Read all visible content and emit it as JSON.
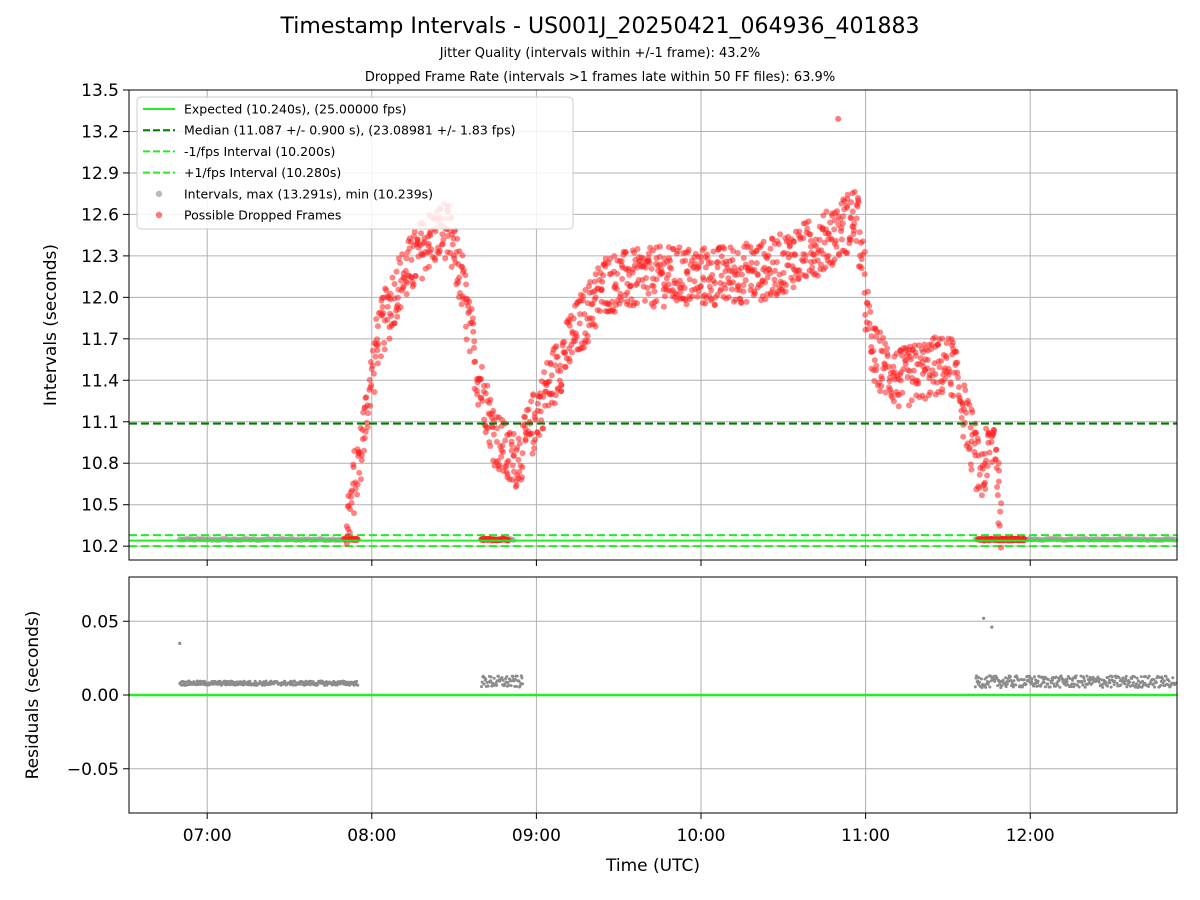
{
  "title": "Timestamp Intervals - US001J_20250421_064936_401883",
  "subtitle_jitter": "Jitter Quality (intervals within +/-1 frame): 43.2%",
  "subtitle_dropped": "Dropped Frame Rate (intervals >1 frames late within 50 FF files): 63.9%",
  "colors": {
    "expected": "#22ee22",
    "median": "#007a00",
    "interval_points": "#8c8c8c",
    "dropped_points": "#ff2020",
    "grid": "#b0b0b0"
  },
  "chart_data": [
    {
      "type": "scatter",
      "ylabel": "Intervals (seconds)",
      "xlim": [
        "06:32",
        "12:53"
      ],
      "ylim": [
        10.1,
        13.5
      ],
      "yticks": [
        "10.2",
        "10.5",
        "10.8",
        "11.1",
        "11.4",
        "11.7",
        "12.0",
        "12.3",
        "12.6",
        "12.9",
        "13.2",
        "13.5"
      ],
      "grid": true,
      "legend_position": "top-left",
      "reference_lines": [
        {
          "name": "Expected (10.240s), (25.00000 fps)",
          "y": 10.24,
          "style": "solid"
        },
        {
          "name": "Median (11.087 +/- 0.900 s), (23.08981 +/- 1.83 fps)",
          "y": 11.087,
          "style": "dashed"
        },
        {
          "name": "-1/fps Interval (10.200s)",
          "y": 10.2,
          "style": "dashed"
        },
        {
          "name": "+1/fps Interval (10.280s)",
          "y": 10.28,
          "style": "dashed"
        }
      ],
      "series": [
        {
          "name": "Intervals, max (13.291s), min (10.239s)",
          "segments": [
            {
              "x_range": [
                "06:50",
                "07:55"
              ],
              "y": 10.248
            },
            {
              "x_range": [
                "08:40",
                "08:52"
              ],
              "y": 10.249
            },
            {
              "x_range": [
                "11:40",
                "12:53"
              ],
              "y": 10.249
            }
          ]
        },
        {
          "name": "Possible Dropped Frames",
          "envelope": [
            {
              "x": "07:50",
              "y": 10.25
            },
            {
              "x": "07:56",
              "y": 10.9
            },
            {
              "x": "08:02",
              "y": 11.7
            },
            {
              "x": "08:10",
              "y": 12.1
            },
            {
              "x": "08:20",
              "y": 12.4
            },
            {
              "x": "08:27",
              "y": 12.5
            },
            {
              "x": "08:33",
              "y": 12.1
            },
            {
              "x": "08:38",
              "y": 11.5
            },
            {
              "x": "08:45",
              "y": 11.0
            },
            {
              "x": "08:51",
              "y": 10.8
            },
            {
              "x": "08:55",
              "y": 10.9
            },
            {
              "x": "09:03",
              "y": 11.3
            },
            {
              "x": "09:13",
              "y": 11.7
            },
            {
              "x": "09:25",
              "y": 12.1
            },
            {
              "x": "09:45",
              "y": 12.15
            },
            {
              "x": "10:05",
              "y": 12.15
            },
            {
              "x": "10:25",
              "y": 12.2
            },
            {
              "x": "10:45",
              "y": 12.4
            },
            {
              "x": "10:57",
              "y": 12.6
            },
            {
              "x": "11:02",
              "y": 11.6
            },
            {
              "x": "11:12",
              "y": 11.4
            },
            {
              "x": "11:25",
              "y": 11.5
            },
            {
              "x": "11:32",
              "y": 11.5
            },
            {
              "x": "11:37",
              "y": 11.1
            },
            {
              "x": "11:42",
              "y": 10.7
            },
            {
              "x": "11:47",
              "y": 11.0
            },
            {
              "x": "11:50",
              "y": 10.25
            },
            {
              "x": "11:58",
              "y": 10.25
            }
          ],
          "scatter_spread": 0.22,
          "max_point": {
            "x": "10:50",
            "y": 13.291
          }
        }
      ]
    },
    {
      "type": "scatter",
      "xlabel": "Time (UTC)",
      "ylabel": "Residuals (seconds)",
      "ylim": [
        -0.08,
        0.08
      ],
      "yticks": [
        "−0.05",
        "0.00",
        "0.05"
      ],
      "xticks": [
        "07:00",
        "08:00",
        "09:00",
        "10:00",
        "11:00",
        "12:00"
      ],
      "grid": true,
      "zero_line": 0.0,
      "series": [
        {
          "name": "Residuals",
          "segments": [
            {
              "x_range": [
                "06:50",
                "07:55"
              ],
              "y": 0.008,
              "spread": 0.0015
            },
            {
              "x_range": [
                "08:40",
                "08:55"
              ],
              "y": 0.009,
              "spread": 0.004
            },
            {
              "x_range": [
                "11:40",
                "12:53"
              ],
              "y": 0.009,
              "spread": 0.004
            }
          ],
          "outliers": [
            {
              "x": "06:50",
              "y": 0.035
            },
            {
              "x": "11:43",
              "y": 0.052
            },
            {
              "x": "11:46",
              "y": 0.046
            }
          ]
        }
      ]
    }
  ]
}
